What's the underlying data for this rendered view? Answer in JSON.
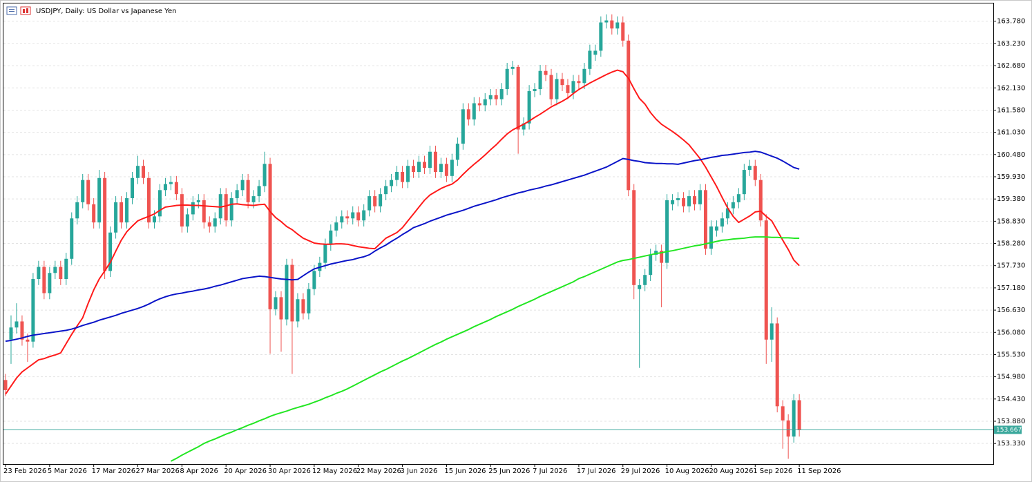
{
  "chart_data": {
    "type": "candlestick",
    "title": "USDJPY, Daily:  US Dollar vs Japanese Yen",
    "categories": [
      "23 Feb 2026",
      null,
      null,
      null,
      null,
      null,
      null,
      null,
      "5 Mar 2026",
      null,
      null,
      null,
      null,
      null,
      null,
      null,
      "17 Mar 2026",
      null,
      null,
      null,
      null,
      null,
      null,
      null,
      "27 Mar 2026",
      null,
      null,
      null,
      null,
      null,
      null,
      null,
      "8 Apr 2026",
      null,
      null,
      null,
      null,
      null,
      null,
      null,
      "20 Apr 2026",
      null,
      null,
      null,
      null,
      null,
      null,
      null,
      "30 Apr 2026",
      null,
      null,
      null,
      null,
      null,
      null,
      null,
      "12 May 2026",
      null,
      null,
      null,
      null,
      null,
      null,
      null,
      "22 May 2026",
      null,
      null,
      null,
      null,
      null,
      null,
      null,
      "3 Jun 2026",
      null,
      null,
      null,
      null,
      null,
      null,
      null,
      "15 Jun 2026",
      null,
      null,
      null,
      null,
      null,
      null,
      null,
      "25 Jun 2026",
      null,
      null,
      null,
      null,
      null,
      null,
      null,
      "7 Jul 2026",
      null,
      null,
      null,
      null,
      null,
      null,
      null,
      "17 Jul 2026",
      null,
      null,
      null,
      null,
      null,
      null,
      null,
      "29 Jul 2026",
      null,
      null,
      null,
      null,
      null,
      null,
      null,
      "10 Aug 2026",
      null,
      null,
      null,
      null,
      null,
      null,
      null,
      "20 Aug 2026",
      null,
      null,
      null,
      null,
      null,
      null,
      null,
      "1 Sep 2026",
      null,
      null,
      null,
      null,
      null,
      null,
      null,
      "11 Sep 2026"
    ],
    "open": [
      154.9,
      155.9,
      156.2,
      156.35,
      155.9,
      155.85,
      157.4,
      157.7,
      157.05,
      157.55,
      157.7,
      157.4,
      157.9,
      158.9,
      159.3,
      159.85,
      159.25,
      158.8,
      159.9,
      157.6,
      158.55,
      159.3,
      158.8,
      159.4,
      159.9,
      160.2,
      159.9,
      158.8,
      158.95,
      159.6,
      159.75,
      159.8,
      159.5,
      158.7,
      159.0,
      159.3,
      159.35,
      158.8,
      158.7,
      158.9,
      159.5,
      158.85,
      159.4,
      159.6,
      159.85,
      159.3,
      159.45,
      159.7,
      160.25,
      156.65,
      156.95,
      156.4,
      157.75,
      156.35,
      156.9,
      156.55,
      157.15,
      157.6,
      157.8,
      158.25,
      158.6,
      158.8,
      158.95,
      158.9,
      159.05,
      158.85,
      159.1,
      159.45,
      159.2,
      159.5,
      159.7,
      159.85,
      160.05,
      159.8,
      160.2,
      160.05,
      160.3,
      160.15,
      160.55,
      160.05,
      160.25,
      159.95,
      160.35,
      160.75,
      161.6,
      161.35,
      161.75,
      161.7,
      161.85,
      161.95,
      161.85,
      162.1,
      162.6,
      162.65,
      161.1,
      161.25,
      162.05,
      162.1,
      162.55,
      162.45,
      161.85,
      162.35,
      162.2,
      162.0,
      162.3,
      162.25,
      162.6,
      162.95,
      163.05,
      163.75,
      163.8,
      163.6,
      163.75,
      163.3,
      159.6,
      157.15,
      157.25,
      157.5,
      158.0,
      158.1,
      157.8,
      159.25,
      159.35,
      159.4,
      159.2,
      159.45,
      159.25,
      159.6,
      158.15,
      158.6,
      158.7,
      158.9,
      159.15,
      159.3,
      159.5,
      160.1,
      160.2,
      159.85,
      158.85,
      155.9,
      156.3,
      154.25,
      153.9,
      153.5,
      154.4
    ],
    "high": [
      155.05,
      156.5,
      156.8,
      156.5,
      156.05,
      157.55,
      157.85,
      157.85,
      157.7,
      157.85,
      157.85,
      158.05,
      159.05,
      159.45,
      160.0,
      160.0,
      159.4,
      160.1,
      160.05,
      158.7,
      159.45,
      159.45,
      159.55,
      160.05,
      160.45,
      160.35,
      160.05,
      159.1,
      159.75,
      159.9,
      159.95,
      159.95,
      159.65,
      159.15,
      159.45,
      159.5,
      159.5,
      158.95,
      159.05,
      159.65,
      159.65,
      159.55,
      159.75,
      160.0,
      160.0,
      159.6,
      159.85,
      160.55,
      160.4,
      157.1,
      157.1,
      157.9,
      157.9,
      157.05,
      157.05,
      157.3,
      157.75,
      157.95,
      158.4,
      158.75,
      158.95,
      159.1,
      159.1,
      159.2,
      159.2,
      159.25,
      159.6,
      159.6,
      159.65,
      159.85,
      160.0,
      160.2,
      160.2,
      160.35,
      160.35,
      160.45,
      160.45,
      160.7,
      160.7,
      160.4,
      160.4,
      160.5,
      160.9,
      161.75,
      161.75,
      161.9,
      161.9,
      162.0,
      162.1,
      162.1,
      162.25,
      162.75,
      162.8,
      162.7,
      161.4,
      162.2,
      162.25,
      162.7,
      162.7,
      162.6,
      162.5,
      162.5,
      162.35,
      162.45,
      162.45,
      162.75,
      163.2,
      163.2,
      163.9,
      163.95,
      163.95,
      163.9,
      163.9,
      163.45,
      159.75,
      157.4,
      157.65,
      158.15,
      158.25,
      158.25,
      159.5,
      159.5,
      159.55,
      159.55,
      159.6,
      159.6,
      159.75,
      159.75,
      158.85,
      158.85,
      159.05,
      159.3,
      159.45,
      159.65,
      160.25,
      160.35,
      160.35,
      160.0,
      159.0,
      156.7,
      156.45,
      154.4,
      154.05,
      154.55,
      154.55
    ],
    "low": [
      154.5,
      155.3,
      156.05,
      155.75,
      155.35,
      155.7,
      157.25,
      156.9,
      156.9,
      157.4,
      157.25,
      157.25,
      157.75,
      158.75,
      159.15,
      159.1,
      158.65,
      158.65,
      157.4,
      157.45,
      158.4,
      158.65,
      158.65,
      159.25,
      159.75,
      159.75,
      158.65,
      158.65,
      158.8,
      159.45,
      159.6,
      159.35,
      158.55,
      158.55,
      158.85,
      159.15,
      158.65,
      158.55,
      158.55,
      158.75,
      158.7,
      158.7,
      159.25,
      159.45,
      159.15,
      159.15,
      159.3,
      159.55,
      155.55,
      156.5,
      155.6,
      156.25,
      155.05,
      156.2,
      156.4,
      156.4,
      157.0,
      157.45,
      157.65,
      158.1,
      158.45,
      158.65,
      158.75,
      158.75,
      158.7,
      158.7,
      158.95,
      159.05,
      159.05,
      159.35,
      159.55,
      159.7,
      159.65,
      159.65,
      159.9,
      159.9,
      160.0,
      160.0,
      159.9,
      159.9,
      159.8,
      159.8,
      160.2,
      160.6,
      161.2,
      161.2,
      161.55,
      161.55,
      161.7,
      161.7,
      161.7,
      161.95,
      162.45,
      160.5,
      160.95,
      161.1,
      161.9,
      161.95,
      162.3,
      161.7,
      161.7,
      162.05,
      161.85,
      161.85,
      162.1,
      162.1,
      162.45,
      162.8,
      162.9,
      163.6,
      163.45,
      163.45,
      163.15,
      159.45,
      156.9,
      155.2,
      157.1,
      157.35,
      157.85,
      156.7,
      157.65,
      159.1,
      159.2,
      159.05,
      159.05,
      159.1,
      159.1,
      158.0,
      158.0,
      158.45,
      158.55,
      158.75,
      159.0,
      159.15,
      159.35,
      159.95,
      159.7,
      158.7,
      155.3,
      155.35,
      154.1,
      153.2,
      152.95,
      153.35,
      153.5
    ],
    "close": [
      154.65,
      156.2,
      156.35,
      155.9,
      155.85,
      157.4,
      157.7,
      157.05,
      157.55,
      157.7,
      157.4,
      157.9,
      158.9,
      159.3,
      159.85,
      159.25,
      158.8,
      159.9,
      157.6,
      158.55,
      159.3,
      158.8,
      159.4,
      159.9,
      160.2,
      159.9,
      158.8,
      158.95,
      159.6,
      159.75,
      159.8,
      159.5,
      158.7,
      159.0,
      159.3,
      159.35,
      158.8,
      158.7,
      158.9,
      159.5,
      158.85,
      159.4,
      159.6,
      159.85,
      159.3,
      159.45,
      159.7,
      160.25,
      156.65,
      156.95,
      156.4,
      157.75,
      156.35,
      156.9,
      156.55,
      157.15,
      157.6,
      157.8,
      158.25,
      158.6,
      158.8,
      158.95,
      158.9,
      159.05,
      158.85,
      159.1,
      159.45,
      159.2,
      159.5,
      159.7,
      159.85,
      160.05,
      159.8,
      160.2,
      160.05,
      160.3,
      160.15,
      160.55,
      160.05,
      160.25,
      159.95,
      160.35,
      160.75,
      161.6,
      161.35,
      161.75,
      161.7,
      161.85,
      161.95,
      161.85,
      162.1,
      162.6,
      162.65,
      161.1,
      161.25,
      162.05,
      162.1,
      162.55,
      162.45,
      161.85,
      162.35,
      162.2,
      162.0,
      162.3,
      162.25,
      162.6,
      163.05,
      163.05,
      163.75,
      163.8,
      163.6,
      163.75,
      163.3,
      159.6,
      157.25,
      157.25,
      157.5,
      158.0,
      158.1,
      157.8,
      159.35,
      159.35,
      159.4,
      159.2,
      159.45,
      159.25,
      159.6,
      158.15,
      158.7,
      158.7,
      158.9,
      159.15,
      159.3,
      159.5,
      160.1,
      160.2,
      159.85,
      158.85,
      155.9,
      156.3,
      154.25,
      153.9,
      153.5,
      154.4,
      153.667
    ],
    "up_color": "#26a69a",
    "down_color": "#ef5350",
    "overlays": [
      {
        "type": "line",
        "color": "#ff1a1a",
        "values": [
          154.55,
          154.75,
          154.95,
          155.1,
          155.2,
          155.3,
          155.4,
          155.43,
          155.48,
          155.52,
          155.57,
          155.8,
          156.03,
          156.24,
          156.44,
          156.8,
          157.13,
          157.4,
          157.6,
          157.81,
          158.09,
          158.36,
          158.57,
          158.71,
          158.84,
          158.9,
          158.95,
          159.01,
          159.1,
          159.18,
          159.2,
          159.22,
          159.23,
          159.23,
          159.22,
          159.22,
          159.21,
          159.2,
          159.19,
          159.18,
          159.21,
          159.25,
          159.26,
          159.24,
          159.23,
          159.22,
          159.24,
          159.25,
          159.07,
          158.92,
          158.82,
          158.7,
          158.62,
          158.51,
          158.41,
          158.35,
          158.29,
          158.27,
          158.26,
          158.26,
          158.27,
          158.27,
          158.26,
          158.23,
          158.2,
          158.18,
          158.16,
          158.15,
          158.28,
          158.41,
          158.48,
          158.55,
          158.67,
          158.84,
          159.01,
          159.18,
          159.35,
          159.48,
          159.56,
          159.64,
          159.7,
          159.75,
          159.85,
          159.99,
          160.12,
          160.24,
          160.35,
          160.47,
          160.6,
          160.72,
          160.86,
          160.99,
          161.09,
          161.16,
          161.23,
          161.31,
          161.4,
          161.48,
          161.57,
          161.66,
          161.73,
          161.8,
          161.88,
          161.99,
          162.09,
          162.17,
          162.25,
          162.32,
          162.39,
          162.46,
          162.52,
          162.57,
          162.53,
          162.37,
          162.11,
          161.87,
          161.73,
          161.52,
          161.36,
          161.23,
          161.14,
          161.05,
          160.95,
          160.84,
          160.72,
          160.55,
          160.38,
          160.17,
          159.93,
          159.69,
          159.42,
          159.16,
          158.95,
          158.8,
          158.88,
          158.96,
          159.06,
          159.08,
          158.95,
          158.84,
          158.6,
          158.36,
          158.13,
          157.87,
          157.73
        ]
      },
      {
        "type": "line",
        "color": "#0a14c8",
        "values": [
          155.86,
          155.88,
          155.91,
          155.94,
          155.98,
          156.01,
          156.03,
          156.05,
          156.07,
          156.09,
          156.11,
          156.13,
          156.16,
          156.2,
          156.25,
          156.29,
          156.33,
          156.38,
          156.42,
          156.46,
          156.5,
          156.55,
          156.59,
          156.63,
          156.67,
          156.72,
          156.78,
          156.85,
          156.91,
          156.96,
          157.0,
          157.03,
          157.05,
          157.08,
          157.1,
          157.13,
          157.15,
          157.18,
          157.22,
          157.25,
          157.29,
          157.33,
          157.37,
          157.41,
          157.43,
          157.45,
          157.47,
          157.46,
          157.44,
          157.42,
          157.4,
          157.39,
          157.38,
          157.39,
          157.48,
          157.57,
          157.65,
          157.69,
          157.73,
          157.77,
          157.8,
          157.83,
          157.86,
          157.88,
          157.92,
          157.95,
          158.0,
          158.09,
          158.17,
          158.24,
          158.33,
          158.41,
          158.5,
          158.58,
          158.67,
          158.72,
          158.77,
          158.83,
          158.88,
          158.93,
          158.98,
          159.02,
          159.06,
          159.1,
          159.15,
          159.2,
          159.24,
          159.28,
          159.32,
          159.36,
          159.41,
          159.45,
          159.49,
          159.53,
          159.56,
          159.6,
          159.63,
          159.66,
          159.7,
          159.73,
          159.77,
          159.81,
          159.85,
          159.89,
          159.93,
          159.97,
          160.02,
          160.07,
          160.12,
          160.17,
          160.24,
          160.31,
          160.38,
          160.36,
          160.33,
          160.31,
          160.28,
          160.27,
          160.26,
          160.26,
          160.25,
          160.25,
          160.24,
          160.27,
          160.3,
          160.33,
          160.35,
          160.38,
          160.41,
          160.43,
          160.46,
          160.47,
          160.49,
          160.51,
          160.53,
          160.54,
          160.56,
          160.54,
          160.49,
          160.44,
          160.39,
          160.32,
          160.24,
          160.16,
          160.12
        ]
      },
      {
        "type": "line",
        "color": "#22e622",
        "values": [
          null,
          null,
          null,
          null,
          null,
          null,
          null,
          null,
          null,
          null,
          null,
          null,
          null,
          null,
          null,
          null,
          null,
          null,
          null,
          null,
          null,
          null,
          null,
          null,
          null,
          null,
          null,
          null,
          null,
          null,
          152.89,
          152.96,
          153.04,
          153.11,
          153.18,
          153.25,
          153.33,
          153.39,
          153.44,
          153.5,
          153.56,
          153.61,
          153.67,
          153.72,
          153.78,
          153.83,
          153.89,
          153.94,
          154.0,
          154.05,
          154.09,
          154.13,
          154.18,
          154.22,
          154.26,
          154.3,
          154.35,
          154.4,
          154.46,
          154.51,
          154.57,
          154.62,
          154.68,
          154.75,
          154.82,
          154.89,
          154.96,
          155.03,
          155.1,
          155.16,
          155.23,
          155.3,
          155.37,
          155.43,
          155.5,
          155.57,
          155.64,
          155.71,
          155.78,
          155.84,
          155.91,
          155.97,
          156.03,
          156.09,
          156.15,
          156.22,
          156.28,
          156.34,
          156.4,
          156.47,
          156.53,
          156.59,
          156.65,
          156.72,
          156.78,
          156.84,
          156.9,
          156.97,
          157.03,
          157.09,
          157.15,
          157.21,
          157.27,
          157.33,
          157.41,
          157.46,
          157.52,
          157.58,
          157.64,
          157.7,
          157.76,
          157.82,
          157.86,
          157.88,
          157.91,
          157.94,
          157.97,
          158.0,
          158.03,
          158.05,
          158.08,
          158.1,
          158.13,
          158.16,
          158.19,
          158.22,
          158.24,
          158.27,
          158.3,
          158.33,
          158.36,
          158.37,
          158.39,
          158.4,
          158.41,
          158.43,
          158.44,
          158.44,
          158.44,
          158.43,
          158.43,
          158.42,
          158.42,
          158.41,
          158.41
        ]
      }
    ],
    "last_price": 153.667,
    "last_price_color": "#3aa89c",
    "ylim": [
      152.82,
      164.22
    ],
    "yticks": [
      {
        "value": 153.33,
        "label": "153.330"
      },
      {
        "value": 153.88,
        "label": "153.880"
      },
      {
        "value": 154.43,
        "label": "154.430"
      },
      {
        "value": 154.98,
        "label": "154.980"
      },
      {
        "value": 155.53,
        "label": "155.530"
      },
      {
        "value": 156.08,
        "label": "156.080"
      },
      {
        "value": 156.63,
        "label": "156.630"
      },
      {
        "value": 157.18,
        "label": "157.180"
      },
      {
        "value": 157.73,
        "label": "157.730"
      },
      {
        "value": 158.28,
        "label": "158.280"
      },
      {
        "value": 158.83,
        "label": "158.830"
      },
      {
        "value": 159.38,
        "label": "159.380"
      },
      {
        "value": 159.93,
        "label": "159.930"
      },
      {
        "value": 160.48,
        "label": "160.480"
      },
      {
        "value": 161.03,
        "label": "161.030"
      },
      {
        "value": 161.58,
        "label": "161.580"
      },
      {
        "value": 162.13,
        "label": "162.130"
      },
      {
        "value": 162.68,
        "label": "162.680"
      },
      {
        "value": 163.23,
        "label": "163.230"
      },
      {
        "value": 163.78,
        "label": "163.780"
      }
    ],
    "grid": true
  }
}
